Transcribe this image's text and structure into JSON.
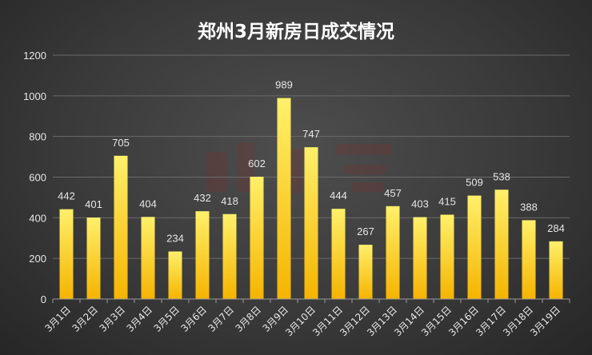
{
  "chart_data": {
    "type": "bar",
    "title": "郑州3月新房日成交情况",
    "xlabel": "",
    "ylabel": "",
    "categories": [
      "3月1日",
      "3月2日",
      "3月3日",
      "3月4日",
      "3月5日",
      "3月6日",
      "3月7日",
      "3月8日",
      "3月9日",
      "3月10日",
      "3月11日",
      "3月12日",
      "3月13日",
      "3月14日",
      "3月15日",
      "3月16日",
      "3月17日",
      "3月18日",
      "3月19日"
    ],
    "values": [
      442,
      401,
      705,
      404,
      234,
      432,
      418,
      602,
      989,
      747,
      444,
      267,
      457,
      403,
      415,
      509,
      538,
      388,
      284
    ],
    "ylim": [
      0,
      1200
    ],
    "yticks": [
      0,
      200,
      400,
      600,
      800,
      1000,
      1200
    ],
    "grid": true,
    "legend": "none",
    "data_labels": true
  },
  "colors": {
    "bar_top": "#fff06a",
    "bar_bottom": "#f5b400",
    "grid": "#6a6a6a",
    "axis": "#9a9a9a",
    "text": "#e6e6e6",
    "title": "#ffffff",
    "watermark": "#8a2a2a"
  }
}
